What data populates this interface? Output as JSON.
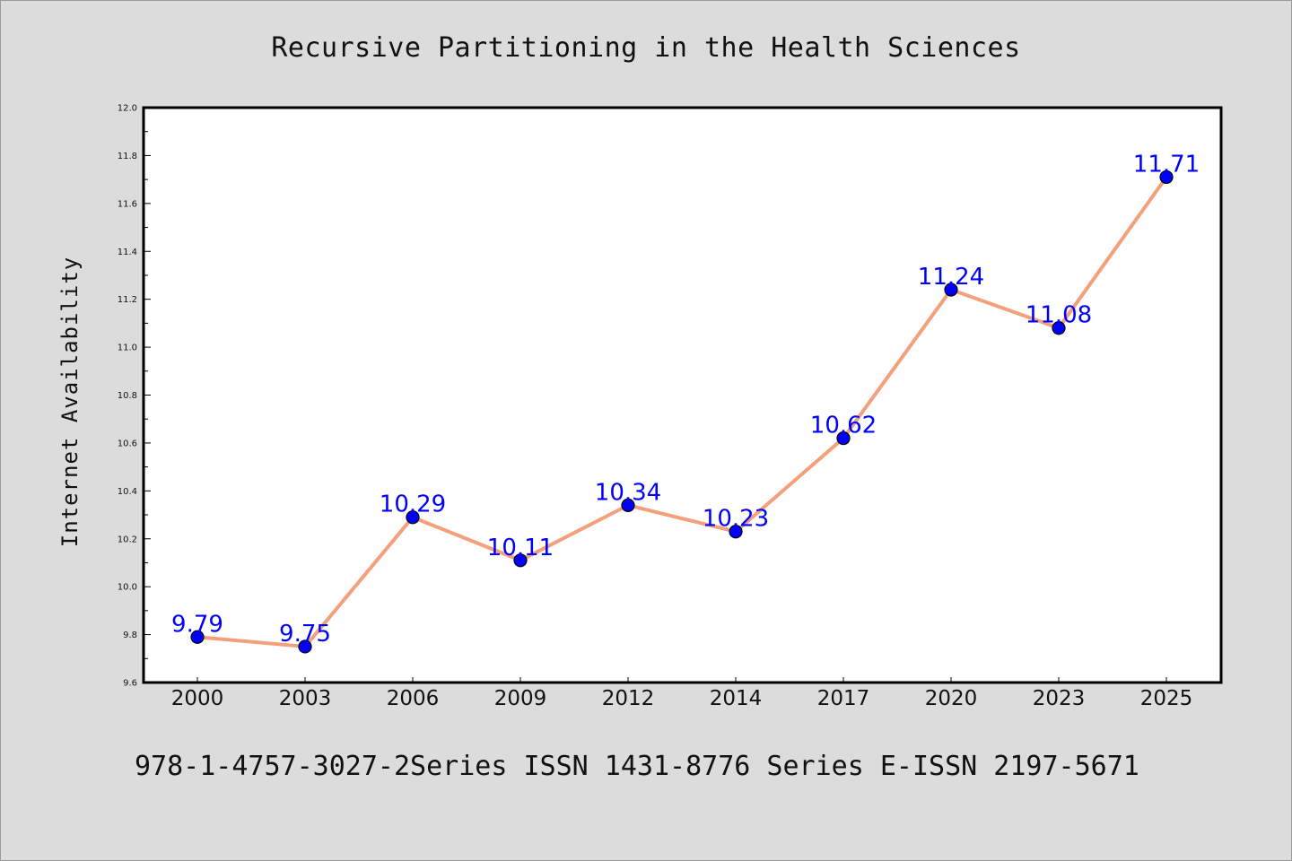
{
  "footer_text": "978-1-4757-3027-2Series ISSN 1431-8776 Series E-ISSN 2197-5671",
  "colors": {
    "background": "#dcdcdc",
    "plot_background": "#ffffff",
    "line": "#f4a07c",
    "marker": "#0000ff",
    "data_label": "#0000ff"
  },
  "chart_data": {
    "type": "line",
    "title": "Recursive Partitioning in the Health Sciences",
    "xlabel": "",
    "ylabel": "Internet Availability",
    "categories": [
      "2000",
      "2003",
      "2006",
      "2009",
      "2012",
      "2014",
      "2017",
      "2020",
      "2023",
      "2025"
    ],
    "values": [
      9.79,
      9.75,
      10.29,
      10.11,
      10.34,
      10.23,
      10.62,
      11.24,
      11.08,
      11.71
    ],
    "data_labels": [
      "9.79",
      "9.75",
      "10.29",
      "10.11",
      "10.34",
      "10.23",
      "10.62",
      "11.24",
      "11.08",
      "11.71"
    ],
    "ylim": [
      9.6,
      12.0
    ],
    "yticks": [
      "9.6",
      "9.8",
      "10.0",
      "10.2",
      "10.4",
      "10.6",
      "10.8",
      "11.0",
      "11.2",
      "11.4",
      "11.6",
      "11.8",
      "12.0"
    ],
    "grid": false,
    "legend": "none"
  }
}
